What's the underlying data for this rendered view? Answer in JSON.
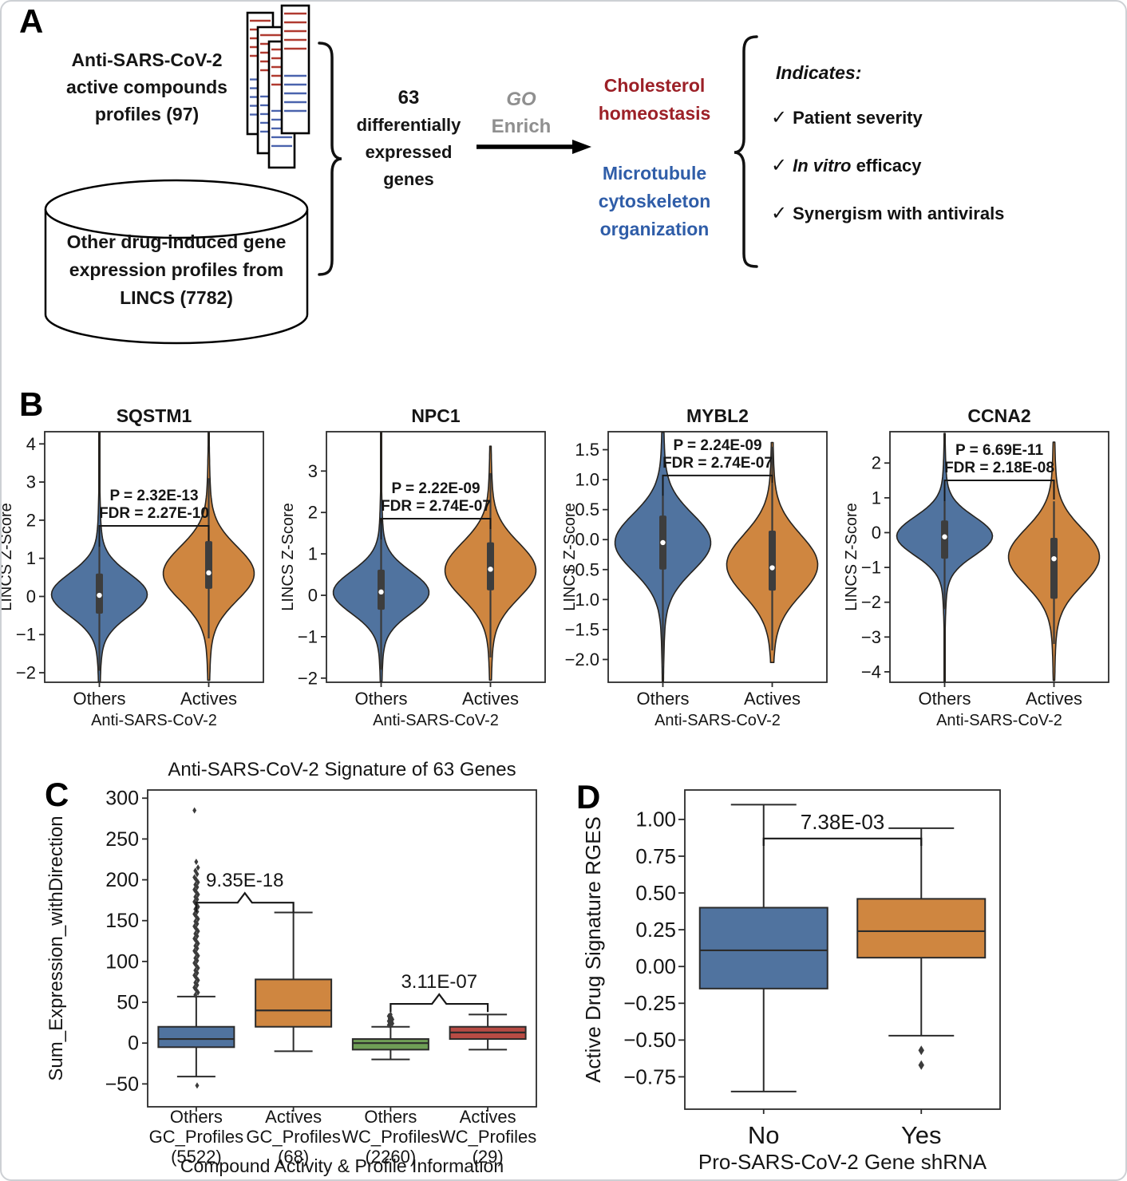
{
  "colors": {
    "blue": "#50739f",
    "orange": "#cf8640",
    "green": "#6f9e56",
    "red": "#b84b44",
    "dark_red_text": "#9c2027",
    "blue_text": "#2f5da8",
    "gray_text": "#8f8f8f",
    "profile_line_red": "#b03a30",
    "profile_line_blue": "#4a63ad"
  },
  "panels": {
    "a": "A",
    "b": "B",
    "c": "C",
    "d": "D"
  },
  "panel_a": {
    "compounds_lines": [
      "Anti-SARS-CoV-2",
      "active compounds",
      "profiles (97)"
    ],
    "database_lines": [
      "Other drug-induced gene",
      "expression profiles from",
      "LINCS (7782)"
    ],
    "deg_lines": [
      "63",
      "differentially",
      "expressed",
      "genes"
    ],
    "go_lines": [
      "GO",
      "Enrich"
    ],
    "outcome_red_lines": [
      "Cholesterol",
      "homeostasis"
    ],
    "outcome_blue_lines": [
      "Microtubule",
      "cytoskeleton",
      "organization"
    ],
    "indicates": {
      "title": "Indicates:",
      "check": "✓",
      "items": [
        {
          "italic": "",
          "text": "Patient severity"
        },
        {
          "italic": "In vitro",
          "text": " efficacy"
        },
        {
          "italic": "",
          "text": "Synergism with antivirals"
        }
      ]
    }
  },
  "chart_data": [
    {
      "id": "violin-sqstm1",
      "type": "violin",
      "title": "SQSTM1",
      "ylabel": "LINCS Z-Score",
      "xlabel": "Anti-SARS-CoV-2",
      "categories": [
        "Others",
        "Actives"
      ],
      "ylim": [
        -2.25,
        4.32
      ],
      "yticks": [
        4,
        3,
        2,
        1,
        0,
        -1,
        -2
      ],
      "ytick_labels": [
        "4",
        "3",
        "2",
        "1",
        "0",
        "−1",
        "−2"
      ],
      "series": [
        {
          "name": "Others",
          "color": "#50739f",
          "mode": 0.05,
          "sigma": 0.55,
          "top": 4.3,
          "bottom": -2.24,
          "q1": -0.45,
          "q3": 0.6,
          "median": 0.03,
          "whisker_low": -1.95,
          "whisker_high": 1.3,
          "half_width": 1.0
        },
        {
          "name": "Actives",
          "color": "#cf8640",
          "mode": 0.6,
          "sigma": 0.7,
          "top": 4.3,
          "bottom": -2.2,
          "q1": 0.2,
          "q3": 1.45,
          "median": 0.62,
          "whisker_low": -1.1,
          "whisker_high": 3.1,
          "half_width": 0.95
        }
      ],
      "annotation": {
        "p": "P = 2.32E-13",
        "fdr": "FDR = 2.27E-10",
        "bar_y": 1.85,
        "left_end": 1.3,
        "right_end": 1.45
      }
    },
    {
      "id": "violin-npc1",
      "type": "violin",
      "title": "NPC1",
      "ylabel": "LINCS Z-Score",
      "xlabel": "Anti-SARS-CoV-2",
      "categories": [
        "Others",
        "Actives"
      ],
      "ylim": [
        -2.1,
        3.95
      ],
      "yticks": [
        3,
        2,
        1,
        0,
        -1,
        -2
      ],
      "ytick_labels": [
        "3",
        "2",
        "1",
        "0",
        "−1",
        "−2"
      ],
      "series": [
        {
          "name": "Others",
          "color": "#50739f",
          "mode": 0.07,
          "sigma": 0.5,
          "top": 3.93,
          "bottom": -2.08,
          "q1": -0.35,
          "q3": 0.62,
          "median": 0.08,
          "whisker_low": -1.8,
          "whisker_high": 1.35,
          "half_width": 1.0
        },
        {
          "name": "Actives",
          "color": "#cf8640",
          "mode": 0.6,
          "sigma": 0.66,
          "top": 3.6,
          "bottom": -2.05,
          "q1": 0.12,
          "q3": 1.28,
          "median": 0.63,
          "whisker_low": -1.5,
          "whisker_high": 2.95,
          "half_width": 0.95
        }
      ],
      "annotation": {
        "p": "P = 2.22E-09",
        "fdr": "FDR = 2.74E-07",
        "bar_y": 1.85,
        "left_end": 1.35,
        "right_end": 1.6
      }
    },
    {
      "id": "violin-mybl2",
      "type": "violin",
      "title": "MYBL2",
      "ylabel": "LINCS Z-Score",
      "xlabel": "Anti-SARS-CoV-2",
      "categories": [
        "Others",
        "Actives"
      ],
      "ylim": [
        -2.38,
        1.8
      ],
      "yticks": [
        1.5,
        1.0,
        0.5,
        0.0,
        -0.5,
        -1.0,
        -1.5,
        -2.0
      ],
      "ytick_labels": [
        "1.5",
        "1.0",
        "0.5",
        "0.0",
        "−0.5",
        "−1.0",
        "−1.5",
        "−2.0"
      ],
      "series": [
        {
          "name": "Others",
          "color": "#50739f",
          "mode": -0.05,
          "sigma": 0.47,
          "top": 1.79,
          "bottom": -2.37,
          "q1": -0.5,
          "q3": 0.4,
          "median": -0.05,
          "whisker_low": -2.1,
          "whisker_high": 0.73,
          "half_width": 1.0
        },
        {
          "name": "Actives",
          "color": "#cf8640",
          "mode": -0.42,
          "sigma": 0.5,
          "top": 1.62,
          "bottom": -2.05,
          "q1": -0.85,
          "q3": 0.15,
          "median": -0.47,
          "whisker_low": -1.85,
          "whisker_high": 1.55,
          "half_width": 0.95
        }
      ],
      "annotation": {
        "p": "P = 2.24E-09",
        "fdr": "FDR = 2.74E-07",
        "bar_y": 1.07,
        "left_end": 0.73,
        "right_end": 0.95
      }
    },
    {
      "id": "violin-ccna2",
      "type": "violin",
      "title": "CCNA2",
      "ylabel": "LINCS Z-Score",
      "xlabel": "Anti-SARS-CoV-2",
      "categories": [
        "Others",
        "Actives"
      ],
      "ylim": [
        -4.3,
        2.9
      ],
      "yticks": [
        2,
        1,
        0,
        -1,
        -2,
        -3,
        -4
      ],
      "ytick_labels": [
        "2",
        "1",
        "0",
        "−1",
        "−2",
        "−3",
        "−4"
      ],
      "series": [
        {
          "name": "Others",
          "color": "#50739f",
          "mode": -0.1,
          "sigma": 0.55,
          "top": 2.85,
          "bottom": -4.28,
          "q1": -0.75,
          "q3": 0.35,
          "median": -0.12,
          "whisker_low": -2.2,
          "whisker_high": 0.9,
          "half_width": 1.0
        },
        {
          "name": "Actives",
          "color": "#cf8640",
          "mode": -0.7,
          "sigma": 0.8,
          "top": 2.6,
          "bottom": -4.25,
          "q1": -1.9,
          "q3": -0.15,
          "median": -0.75,
          "whisker_low": -3.2,
          "whisker_high": 0.9,
          "half_width": 0.95
        }
      ],
      "annotation": {
        "p": "P = 6.69E-11",
        "fdr": "FDR = 2.18E-08",
        "bar_y": 1.5,
        "left_end": 0.9,
        "right_end": 0.95
      }
    },
    {
      "id": "box-signature",
      "type": "box",
      "title": "Anti-SARS-CoV-2 Signature of 63 Genes",
      "ylabel": "Sum_Expression_withDirection",
      "xlabel": "Compound Activity & Profile Information",
      "ylim": [
        -78,
        310
      ],
      "yticks": [
        300,
        250,
        200,
        150,
        100,
        50,
        0,
        -50
      ],
      "ytick_labels": [
        "300",
        "250",
        "200",
        "150",
        "100",
        "50",
        "0",
        "−50"
      ],
      "categories": [
        [
          "Others",
          "GC_Profiles",
          "(5522)"
        ],
        [
          "Actives",
          "GC_Profiles",
          "(68)"
        ],
        [
          "Others",
          "WC_Profiles",
          "(2260)"
        ],
        [
          "Actives",
          "WC_Profiles",
          "(29)"
        ]
      ],
      "boxes": [
        {
          "name": "Others GC_Profiles",
          "color": "#50739f",
          "q1": -5,
          "q3": 20,
          "median": 5,
          "whisker_low": -41,
          "whisker_high": 57,
          "outliers": [
            285,
            222,
            215,
            211,
            207,
            203,
            200,
            197,
            194,
            191,
            188,
            185,
            182,
            179,
            176,
            173,
            170,
            167,
            164,
            161,
            158,
            155,
            152,
            149,
            146,
            143,
            140,
            137,
            134,
            131,
            128,
            125,
            122,
            119,
            116,
            113,
            110,
            107,
            104,
            101,
            98,
            95,
            92,
            89,
            86,
            83,
            80,
            77,
            74,
            71,
            68,
            65,
            62,
            59,
            -52
          ]
        },
        {
          "name": "Actives GC_Profiles",
          "color": "#cf8640",
          "q1": 20,
          "q3": 78,
          "median": 40,
          "whisker_low": -10,
          "whisker_high": 160,
          "outliers": []
        },
        {
          "name": "Others WC_Profiles",
          "color": "#6f9e56",
          "q1": -8,
          "q3": 5,
          "median": 0,
          "whisker_low": -20,
          "whisker_high": 20,
          "outliers": [
            22,
            23,
            24,
            25,
            26,
            27,
            28,
            29,
            30,
            31,
            33,
            35
          ]
        },
        {
          "name": "Actives WC_Profiles",
          "color": "#b84b44",
          "q1": 5,
          "q3": 20,
          "median": 13,
          "whisker_low": -8,
          "whisker_high": 35,
          "outliers": []
        }
      ],
      "annotations": [
        {
          "label": "9.35E-18",
          "between": [
            0,
            1
          ],
          "bar_y": 172,
          "drop": 12,
          "nub": true
        },
        {
          "label": "3.11E-07",
          "between": [
            2,
            3
          ],
          "bar_y": 48,
          "drop": 10,
          "nub": true
        }
      ]
    },
    {
      "id": "box-rges",
      "type": "box",
      "title": "",
      "ylabel": "Active Drug Signature RGES",
      "xlabel": "Pro-SARS-CoV-2 Gene shRNA",
      "ylim": [
        -0.97,
        1.2
      ],
      "yticks": [
        1.0,
        0.75,
        0.5,
        0.25,
        0.0,
        -0.25,
        -0.5,
        -0.75
      ],
      "ytick_labels": [
        "1.00",
        "0.75",
        "0.50",
        "0.25",
        "0.00",
        "−0.25",
        "−0.50",
        "−0.75"
      ],
      "categories": [
        [
          "No"
        ],
        [
          "Yes"
        ]
      ],
      "boxes": [
        {
          "name": "No",
          "color": "#50739f",
          "q1": -0.15,
          "q3": 0.4,
          "median": 0.11,
          "whisker_low": -0.85,
          "whisker_high": 1.1,
          "outliers": []
        },
        {
          "name": "Yes",
          "color": "#cf8640",
          "q1": 0.06,
          "q3": 0.46,
          "median": 0.24,
          "whisker_low": -0.47,
          "whisker_high": 0.94,
          "outliers": [
            -0.57,
            -0.67
          ]
        }
      ],
      "annotations": [
        {
          "label": "7.38E-03",
          "between": [
            0,
            1
          ],
          "bar_y": 0.87,
          "drop": 0.05,
          "nub": false
        }
      ]
    }
  ]
}
